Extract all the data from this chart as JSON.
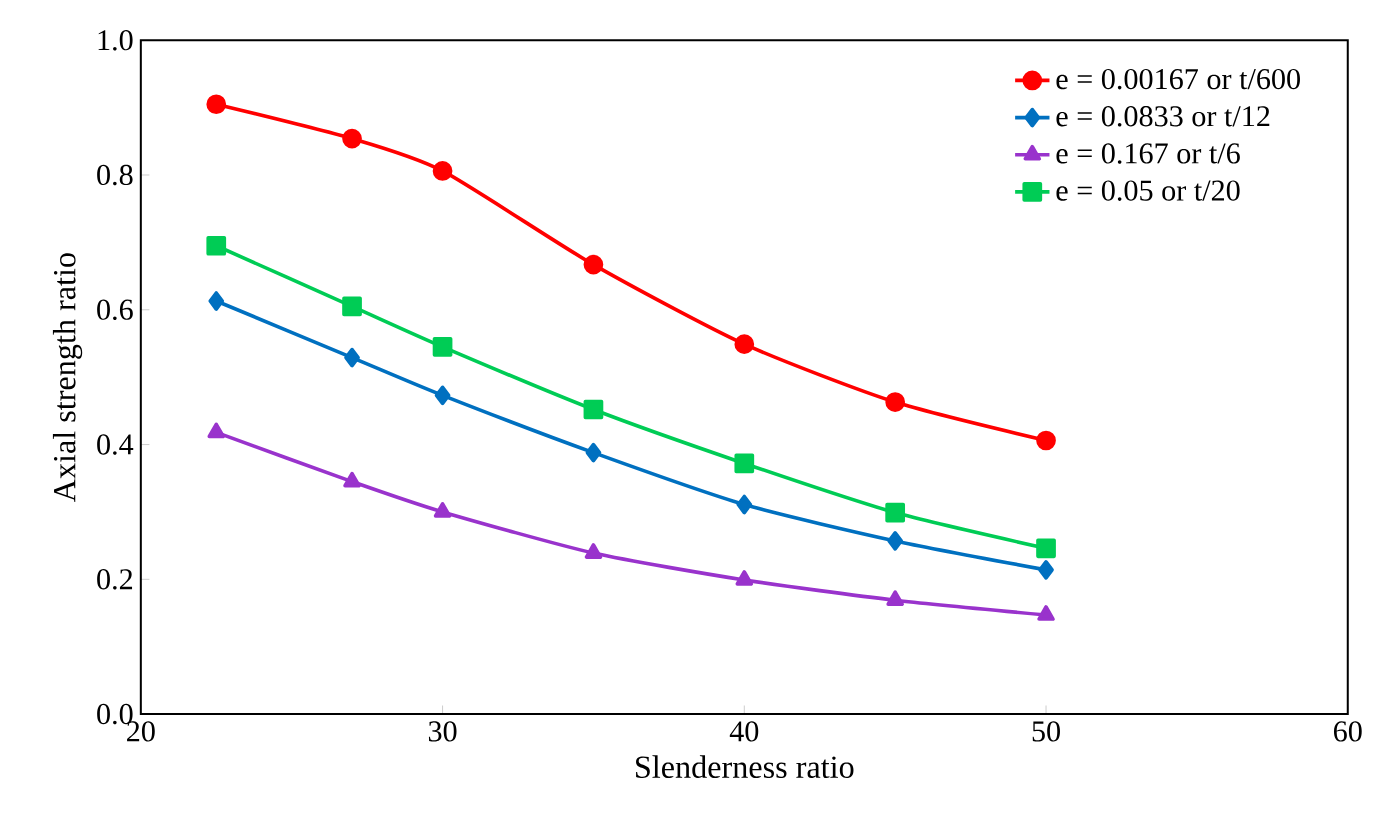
{
  "chart_data": {
    "type": "line",
    "xlabel": "Slenderness ratio",
    "ylabel": "Axial strength ratio",
    "x": [
      22.5,
      27,
      30,
      35,
      40,
      45,
      50
    ],
    "series": [
      {
        "name": "e = 0.00167 or t/600",
        "color": "#ff0000",
        "marker": "circle",
        "values": [
          0.905,
          0.854,
          0.806,
          0.667,
          0.549,
          0.463,
          0.406
        ]
      },
      {
        "name": "e = 0.0833 or t/12",
        "color": "#0070c0",
        "marker": "diamond",
        "values": [
          0.613,
          0.529,
          0.473,
          0.388,
          0.311,
          0.257,
          0.214
        ]
      },
      {
        "name": "e = 0.167 or t/6",
        "color": "#9933cc",
        "marker": "triangle",
        "values": [
          0.418,
          0.345,
          0.3,
          0.239,
          0.199,
          0.169,
          0.147
        ]
      },
      {
        "name": "e = 0.05 or t/20",
        "color": "#00cc55",
        "marker": "square",
        "values": [
          0.695,
          0.605,
          0.545,
          0.452,
          0.372,
          0.299,
          0.246
        ]
      }
    ],
    "xlim": [
      20,
      60
    ],
    "xticks": [
      20,
      30,
      40,
      50,
      60
    ],
    "ylim": [
      0,
      1
    ],
    "yticks": [
      {
        "value": 0,
        "label": "0.0"
      },
      {
        "value": 0.2,
        "label": "0.2"
      },
      {
        "value": 0.4,
        "label": "0.4"
      },
      {
        "value": 0.6,
        "label": "0.6"
      },
      {
        "value": 0.8,
        "label": "0.8"
      },
      {
        "value": 1,
        "label": "1.0"
      }
    ],
    "legend": "top right",
    "grid": false,
    "line_style": "solid"
  }
}
